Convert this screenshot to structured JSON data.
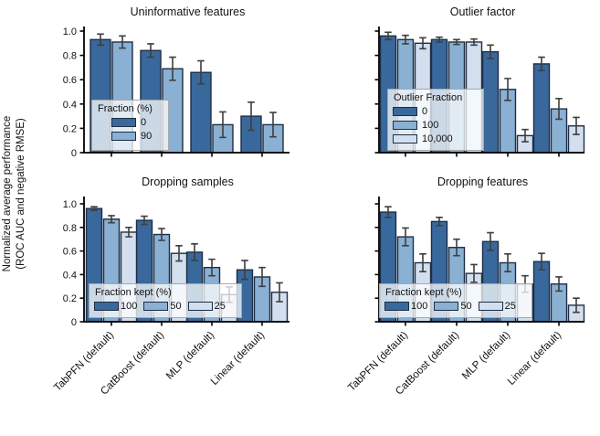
{
  "figure": {
    "y_axis_label_line1": "Normalized average performance",
    "y_axis_label_line2": "(ROC AUC and negative RMSE)"
  },
  "axis": {
    "ylim": [
      0,
      1.05
    ],
    "y_ticks": [
      0,
      0.2,
      0.4,
      0.6,
      0.8,
      1.0
    ],
    "y_tick_labels": [
      "0",
      "0.2",
      "0.4",
      "0.6",
      "0.8",
      "1.0"
    ],
    "grid": false
  },
  "colors": {
    "series": [
      "#39689c",
      "#8ab0d3",
      "#d3dfee"
    ],
    "bar_edge": "#1e2e45",
    "error_bar": "#3e3e3e",
    "axis": "#000000",
    "legend_border": "#a8a8a8"
  },
  "chart_data": [
    {
      "type": "bar",
      "title": "Uninformative features",
      "legend_title": "Fraction (%)",
      "legend_layout": "column",
      "legend_position": "lower-left",
      "categories": [
        "TabPFN (default)",
        "CatBoost (default)",
        "MLP (default)",
        "Linear (default)"
      ],
      "series": [
        {
          "name": "0",
          "values": [
            0.93,
            0.84,
            0.66,
            0.3
          ],
          "errors": [
            0.045,
            0.055,
            0.095,
            0.115
          ]
        },
        {
          "name": "90",
          "values": [
            0.91,
            0.69,
            0.23,
            0.23
          ],
          "errors": [
            0.05,
            0.095,
            0.105,
            0.1
          ]
        }
      ]
    },
    {
      "type": "bar",
      "title": "Outlier factor",
      "legend_title": "Outlier Fraction",
      "legend_layout": "column",
      "legend_position": "lower-left",
      "categories": [
        "TabPFN (default)",
        "CatBoost (default)",
        "MLP (default)",
        "Linear (default)"
      ],
      "series": [
        {
          "name": "0",
          "values": [
            0.96,
            0.93,
            0.83,
            0.73
          ],
          "errors": [
            0.03,
            0.02,
            0.055,
            0.055
          ]
        },
        {
          "name": "100",
          "values": [
            0.93,
            0.91,
            0.52,
            0.36
          ],
          "errors": [
            0.035,
            0.02,
            0.09,
            0.085
          ]
        },
        {
          "name": "10,000",
          "values": [
            0.9,
            0.91,
            0.14,
            0.22
          ],
          "errors": [
            0.045,
            0.025,
            0.05,
            0.07
          ]
        }
      ]
    },
    {
      "type": "bar",
      "title": "Dropping samples",
      "legend_title": "Fraction kept (%)",
      "legend_layout": "row",
      "legend_position": "lower-left",
      "categories": [
        "TabPFN (default)",
        "CatBoost (default)",
        "MLP (default)",
        "Linear (default)"
      ],
      "series": [
        {
          "name": "100",
          "values": [
            0.96,
            0.86,
            0.59,
            0.44
          ],
          "errors": [
            0.015,
            0.035,
            0.07,
            0.08
          ]
        },
        {
          "name": "50",
          "values": [
            0.87,
            0.74,
            0.46,
            0.38
          ],
          "errors": [
            0.03,
            0.05,
            0.07,
            0.08
          ]
        },
        {
          "name": "25",
          "values": [
            0.76,
            0.58,
            0.23,
            0.25
          ],
          "errors": [
            0.04,
            0.065,
            0.065,
            0.08
          ]
        }
      ]
    },
    {
      "type": "bar",
      "title": "Dropping features",
      "legend_title": "Fraction kept (%)",
      "legend_layout": "row",
      "legend_position": "lower-left",
      "categories": [
        "TabPFN (default)",
        "CatBoost (default)",
        "MLP (default)",
        "Linear (default)"
      ],
      "series": [
        {
          "name": "100",
          "values": [
            0.93,
            0.85,
            0.68,
            0.51
          ],
          "errors": [
            0.045,
            0.035,
            0.075,
            0.07
          ]
        },
        {
          "name": "50",
          "values": [
            0.72,
            0.63,
            0.5,
            0.32
          ],
          "errors": [
            0.075,
            0.07,
            0.075,
            0.06
          ]
        },
        {
          "name": "25",
          "values": [
            0.5,
            0.41,
            0.32,
            0.14
          ],
          "errors": [
            0.075,
            0.075,
            0.07,
            0.06
          ]
        }
      ]
    }
  ]
}
